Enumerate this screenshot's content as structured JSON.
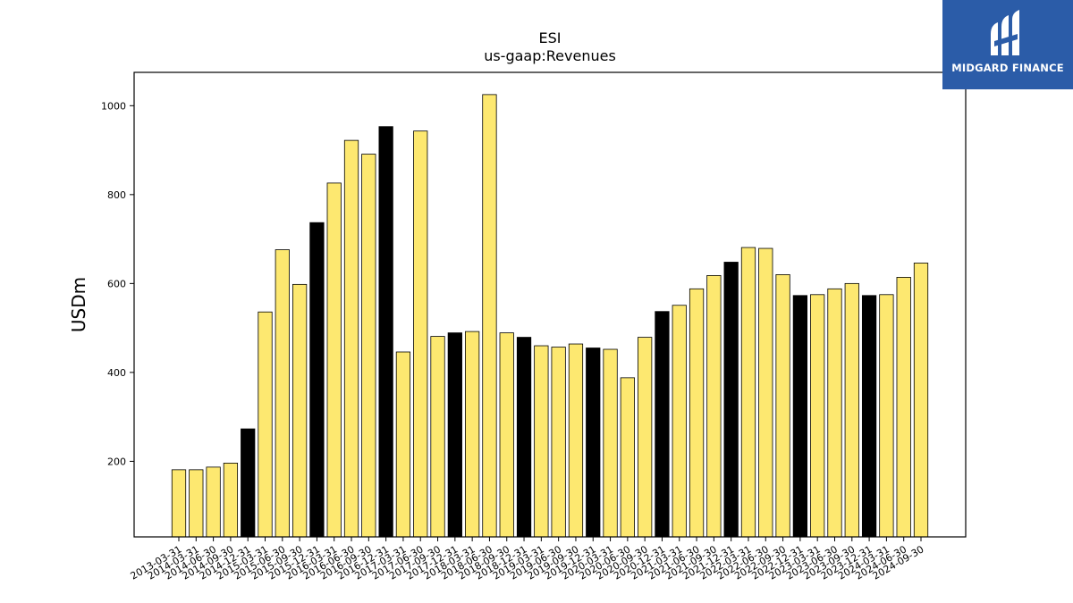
{
  "logo": {
    "text": "MIDGARD FINANCE",
    "icon": "midgard-logo-icon",
    "background": "#2b5ca8"
  },
  "chart_data": {
    "type": "bar",
    "title": "ESI",
    "subtitle": "us-gaap:Revenues",
    "xlabel": "",
    "ylabel": "USDm",
    "ylim": [
      30,
      1075
    ],
    "yticks": [
      200,
      400,
      600,
      800,
      1000
    ],
    "grid": false,
    "colors": {
      "quarter": "#fde870",
      "annual": "#000000",
      "edge": "#000000"
    },
    "categories": [
      "2013-03-31",
      "2014-03-31",
      "2014-06-30",
      "2014-09-30",
      "2014-12-31",
      "2015-03-31",
      "2015-06-30",
      "2015-09-30",
      "2015-12-31",
      "2016-03-31",
      "2016-06-30",
      "2016-09-30",
      "2016-12-31",
      "2017-03-31",
      "2017-06-30",
      "2017-09-30",
      "2017-12-31",
      "2018-03-31",
      "2018-06-30",
      "2018-09-30",
      "2018-12-31",
      "2019-03-31",
      "2019-06-30",
      "2019-09-30",
      "2019-12-31",
      "2020-03-31",
      "2020-06-30",
      "2020-09-30",
      "2020-12-31",
      "2021-03-31",
      "2021-06-30",
      "2021-09-30",
      "2021-12-31",
      "2022-03-31",
      "2022-06-30",
      "2022-09-30",
      "2022-12-31",
      "2023-03-31",
      "2023-06-30",
      "2023-09-30",
      "2023-12-31",
      "2024-03-31",
      "2024-06-30",
      "2024-09-30"
    ],
    "values": [
      181,
      181,
      187,
      196,
      273,
      536,
      676,
      598,
      737,
      826,
      922,
      891,
      953,
      446,
      943,
      481,
      489,
      492,
      1025,
      489,
      479,
      460,
      457,
      464,
      455,
      452,
      388,
      479,
      537,
      551,
      588,
      618,
      648,
      681,
      679,
      620,
      573,
      575,
      588,
      600,
      573,
      575,
      614,
      646
    ],
    "highlight": [
      false,
      false,
      false,
      false,
      true,
      false,
      false,
      false,
      true,
      false,
      false,
      false,
      true,
      false,
      false,
      false,
      true,
      false,
      false,
      false,
      true,
      false,
      false,
      false,
      true,
      false,
      false,
      false,
      true,
      false,
      false,
      false,
      true,
      false,
      false,
      false,
      true,
      false,
      false,
      false,
      true,
      false,
      false,
      false
    ]
  }
}
